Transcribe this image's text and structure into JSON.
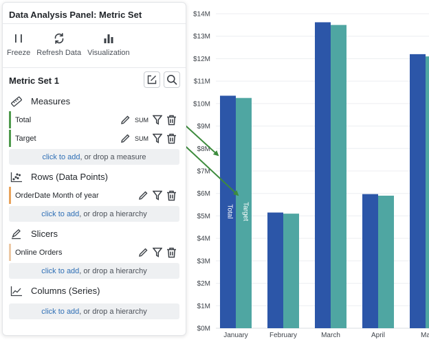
{
  "panel": {
    "title": "Data Analysis Panel: Metric Set",
    "toolbar": [
      {
        "label": "Freeze",
        "icon": "pause-icon"
      },
      {
        "label": "Refresh Data",
        "icon": "refresh-icon"
      },
      {
        "label": "Visualization",
        "icon": "bar-chart-icon"
      }
    ],
    "metric_set": "Metric Set 1",
    "sections": {
      "measures": {
        "title": "Measures",
        "fields": [
          {
            "name": "Total",
            "aggregation": "SUM"
          },
          {
            "name": "Target",
            "aggregation": "SUM"
          }
        ],
        "drop": {
          "link": "click to add",
          "rest": ", or drop a measure"
        }
      },
      "rows": {
        "title": "Rows (Data Points)",
        "fields": [
          {
            "name": "OrderDate Month of year"
          }
        ],
        "drop": {
          "link": "click to add",
          "rest": ", or drop a hierarchy"
        }
      },
      "slicers": {
        "title": "Slicers",
        "fields": [
          {
            "name": "Online Orders"
          }
        ],
        "drop": {
          "link": "click to add",
          "rest": ", or drop a hierarchy"
        }
      },
      "columns": {
        "title": "Columns (Series)",
        "drop": {
          "link": "click to add",
          "rest": ", or drop a hierarchy"
        }
      }
    }
  },
  "chart_data": {
    "type": "bar",
    "categories": [
      "January",
      "February",
      "March",
      "April",
      "Ma"
    ],
    "series": [
      {
        "name": "Total",
        "values": [
          10.35,
          5.15,
          13.62,
          5.97,
          12.2
        ],
        "color": "#2c56a8"
      },
      {
        "name": "Target",
        "values": [
          10.25,
          5.1,
          13.5,
          5.9,
          12.1
        ],
        "color": "#4fa6a2"
      }
    ],
    "ylim": [
      0,
      14
    ],
    "y_ticks": [
      "$0M",
      "$1M",
      "$2M",
      "$3M",
      "$4M",
      "$5M",
      "$6M",
      "$7M",
      "$8M",
      "$9M",
      "$10M",
      "$11M",
      "$12M",
      "$13M",
      "$14M"
    ],
    "grid": true,
    "arrow_color": "#3d8b3d"
  }
}
